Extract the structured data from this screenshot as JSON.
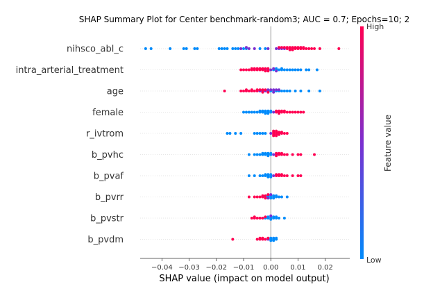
{
  "chart_data": {
    "type": "scatter",
    "subtype": "shap-beeswarm",
    "title": "SHAP Summary Plot for Center benchmark-random3; AUC = 0.7; Epochs=10; 2",
    "xlabel": "SHAP value (impact on model output)",
    "xlim": [
      -0.048,
      0.029
    ],
    "xticks": [
      -0.04,
      -0.03,
      -0.02,
      -0.01,
      0.0,
      0.01,
      0.02
    ],
    "xtick_labels": [
      "−0.04",
      "−0.03",
      "−0.02",
      "−0.01",
      "0.00",
      "0.01",
      "0.02"
    ],
    "colorbar": {
      "title": "Feature value",
      "high_label": "High",
      "low_label": "Low",
      "low_color": "#008bfb",
      "high_color": "#ff0052",
      "mid_color": "#7b2fd0"
    },
    "features": [
      {
        "name": "nihsco_abl_c",
        "low_values": [
          -0.046,
          -0.044,
          -0.037,
          -0.032,
          -0.031,
          -0.028,
          -0.027,
          -0.019,
          -0.018,
          -0.017,
          -0.016,
          -0.014,
          -0.013,
          -0.012,
          -0.01,
          -0.009,
          -0.004,
          -0.002
        ],
        "mid_values": [
          -0.011,
          -0.009,
          -0.008,
          -0.006,
          -0.001,
          0.002,
          0.003,
          0.004,
          0.005
        ],
        "high_values": [
          0.003,
          0.004,
          0.005,
          0.006,
          0.007,
          0.007,
          0.008,
          0.008,
          0.009,
          0.01,
          0.01,
          0.011,
          0.012,
          0.012,
          0.013,
          0.014,
          0.015,
          0.016,
          0.018,
          0.025,
          0.006,
          0.007,
          0.008,
          0.009,
          0.011
        ]
      },
      {
        "name": "intra_arterial_treatment",
        "low_values": [
          0.001,
          0.002,
          0.003,
          0.004,
          0.005,
          0.006,
          0.008,
          0.009,
          0.01,
          0.011,
          0.013,
          0.014,
          0.017,
          0.002,
          0.004,
          0.007
        ],
        "mid_values": [
          -0.002,
          -0.001,
          0.0,
          0.001,
          0.002
        ],
        "high_values": [
          -0.011,
          -0.01,
          -0.009,
          -0.008,
          -0.007,
          -0.006,
          -0.005,
          -0.004,
          -0.003,
          -0.003,
          -0.002,
          -0.001,
          -0.005,
          -0.006,
          -0.007,
          -0.004,
          -0.002,
          -0.001
        ]
      },
      {
        "name": "age",
        "low_values": [
          0.003,
          0.004,
          0.005,
          0.006,
          0.007,
          0.009,
          0.011,
          0.014,
          0.018,
          0.002,
          0.0,
          0.001
        ],
        "mid_values": [
          -0.004,
          -0.003,
          -0.002,
          -0.001,
          0.0,
          0.001,
          0.002,
          0.003,
          -0.001,
          0.001
        ],
        "high_values": [
          -0.017,
          -0.011,
          -0.01,
          -0.009,
          -0.008,
          -0.007,
          -0.006,
          -0.005,
          -0.004,
          -0.003,
          -0.002,
          -0.001,
          -0.009,
          -0.007,
          -0.005,
          -0.003
        ]
      },
      {
        "name": "female",
        "low_values": [
          -0.01,
          -0.009,
          -0.008,
          -0.007,
          -0.006,
          -0.005,
          -0.004,
          -0.003,
          -0.002,
          -0.001,
          0.0,
          -0.003,
          -0.002,
          -0.001,
          0.0,
          -0.004,
          -0.002,
          -0.001
        ],
        "mid_values": [
          0.001
        ],
        "high_values": [
          0.002,
          0.003,
          0.004,
          0.005,
          0.006,
          0.007,
          0.008,
          0.009,
          0.01,
          0.011,
          0.012,
          0.003,
          0.004,
          0.002,
          0.003,
          0.005
        ]
      },
      {
        "name": "r_ivtrom",
        "low_values": [
          -0.016,
          -0.015,
          -0.013,
          -0.011,
          -0.006,
          -0.005,
          -0.004,
          -0.003,
          -0.002
        ],
        "mid_values": [
          0.0
        ],
        "high_values": [
          0.001,
          0.002,
          0.003,
          0.004,
          0.005,
          0.006,
          0.001,
          0.002,
          0.003,
          0.001,
          0.002,
          0.004,
          0.001,
          0.002,
          0.003,
          0.002,
          0.001
        ]
      },
      {
        "name": "b_pvhc",
        "low_values": [
          -0.008,
          -0.006,
          -0.005,
          -0.004,
          -0.003,
          -0.002,
          -0.001,
          0.0,
          -0.002,
          -0.001,
          0.0,
          -0.003,
          -0.001
        ],
        "mid_values": [
          0.001,
          0.002
        ],
        "high_values": [
          0.002,
          0.003,
          0.004,
          0.005,
          0.006,
          0.008,
          0.01,
          0.011,
          0.016,
          0.003,
          0.004,
          0.002
        ]
      },
      {
        "name": "b_pvaf",
        "low_values": [
          -0.008,
          -0.006,
          -0.004,
          -0.003,
          -0.002,
          -0.001,
          0.0,
          -0.002,
          -0.001,
          0.0,
          -0.001,
          0.0
        ],
        "mid_values": [
          0.001
        ],
        "high_values": [
          0.002,
          0.003,
          0.004,
          0.005,
          0.006,
          0.008,
          0.01,
          0.011,
          0.003,
          0.004,
          0.002
        ]
      },
      {
        "name": "b_pvrr",
        "low_values": [
          -0.002,
          -0.001,
          0.0,
          0.001,
          0.002,
          0.003,
          0.004,
          0.006,
          0.0,
          0.001,
          0.002,
          -0.001,
          0.0,
          0.001
        ],
        "mid_values": [
          -0.001,
          0.0
        ],
        "high_values": [
          -0.008,
          -0.006,
          -0.005,
          -0.004,
          -0.003,
          -0.002,
          -0.001,
          -0.003,
          -0.002
        ]
      },
      {
        "name": "b_pvstr",
        "low_values": [
          -0.002,
          -0.001,
          0.0,
          0.001,
          0.002,
          0.003,
          0.005,
          0.0,
          0.001,
          0.002,
          -0.001,
          0.0
        ],
        "mid_values": [
          0.0
        ],
        "high_values": [
          -0.007,
          -0.006,
          -0.005,
          -0.004,
          -0.003,
          -0.002,
          -0.006
        ]
      },
      {
        "name": "b_pvdm",
        "low_values": [
          0.0,
          0.001,
          0.002,
          0.0,
          0.001,
          0.002,
          0.0,
          0.001
        ],
        "mid_values": [
          -0.001
        ],
        "high_values": [
          -0.014,
          -0.005,
          -0.004,
          -0.003,
          -0.002,
          -0.001,
          -0.004,
          -0.003
        ]
      }
    ]
  }
}
